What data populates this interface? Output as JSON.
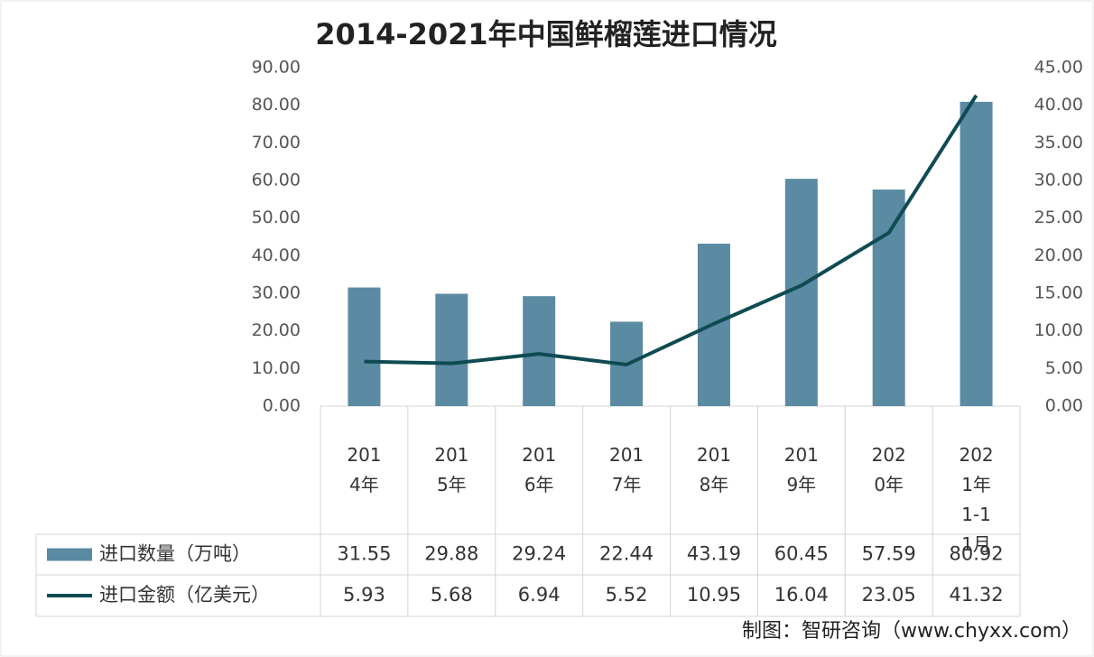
{
  "chart_data": {
    "type": "bar-line",
    "title": "2014-2021年中国鲜榴莲进口情况",
    "categories": [
      "2014年",
      "2015年",
      "2016年",
      "2017年",
      "2018年",
      "2019年",
      "2020年",
      "2021年1-11月"
    ],
    "series": [
      {
        "name": "进口数量（万吨）",
        "type": "bar",
        "color": "#5b8aa3",
        "values": [
          31.55,
          29.88,
          29.24,
          22.44,
          43.19,
          60.45,
          57.59,
          80.92
        ]
      },
      {
        "name": "进口金额（亿美元）",
        "type": "line",
        "axis": "y2",
        "color": "#0e4b52",
        "values": [
          5.93,
          5.68,
          6.94,
          5.52,
          10.95,
          16.04,
          23.05,
          41.32
        ]
      }
    ],
    "ylim": [
      0,
      90
    ],
    "yticks": [
      {
        "value": 0,
        "label": "0.00"
      },
      {
        "value": 10,
        "label": "10.00"
      },
      {
        "value": 20,
        "label": "20.00"
      },
      {
        "value": 30,
        "label": "30.00"
      },
      {
        "value": 40,
        "label": "40.00"
      },
      {
        "value": 50,
        "label": "50.00"
      },
      {
        "value": 60,
        "label": "60.00"
      },
      {
        "value": 70,
        "label": "70.00"
      },
      {
        "value": 80,
        "label": "80.00"
      },
      {
        "value": 90,
        "label": "90.00"
      }
    ],
    "y2lim": [
      0,
      45
    ],
    "y2ticks": [
      {
        "value": 0,
        "label": "0.00"
      },
      {
        "value": 5,
        "label": "5.00"
      },
      {
        "value": 10,
        "label": "10.00"
      },
      {
        "value": 15,
        "label": "15.00"
      },
      {
        "value": 20,
        "label": "20.00"
      },
      {
        "value": 25,
        "label": "25.00"
      },
      {
        "value": 30,
        "label": "30.00"
      },
      {
        "value": 35,
        "label": "35.00"
      },
      {
        "value": 40,
        "label": "40.00"
      },
      {
        "value": 45,
        "label": "45.00"
      }
    ],
    "data_table": true,
    "source": "制图：智研咨询（www.chyxx.com）"
  }
}
